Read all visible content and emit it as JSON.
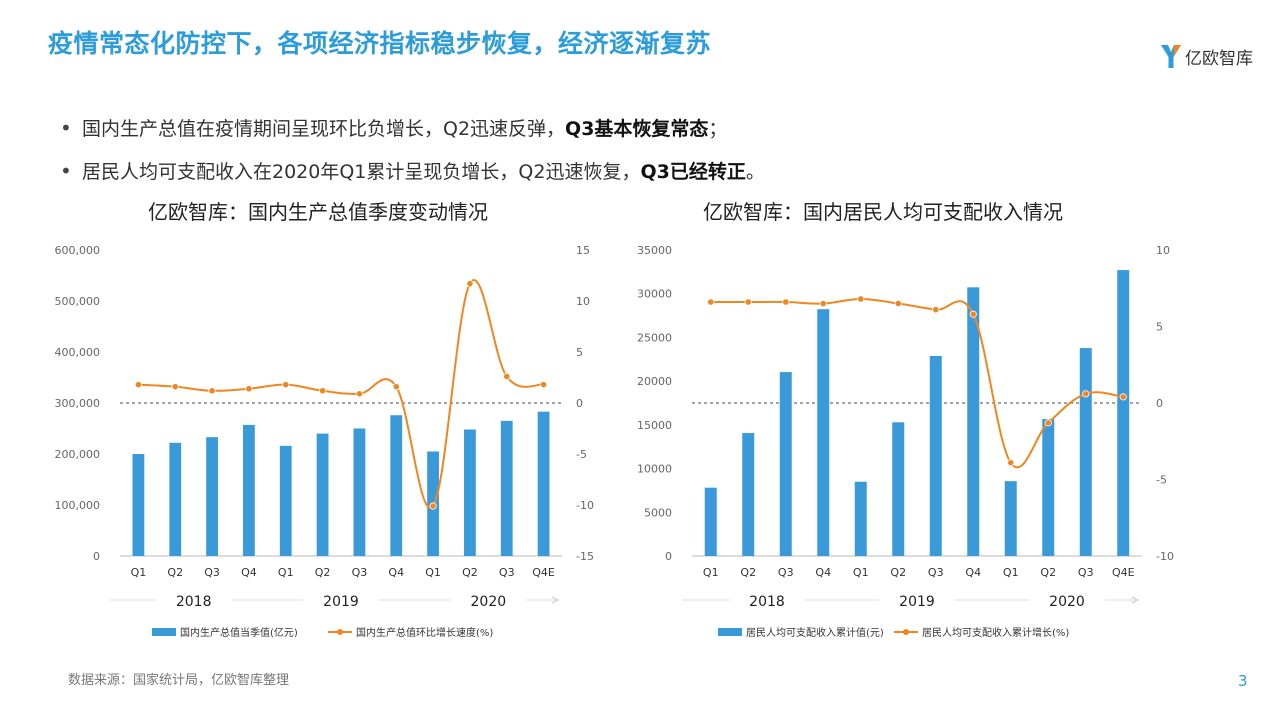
{
  "title": "疫情常态化防控下，各项经济指标稳步恢复，经济逐渐复苏",
  "logo": {
    "icon": "yiou-logo-icon",
    "text": "亿欧智库"
  },
  "bullets": [
    {
      "text": "国内生产总值在疫情期间呈现环比负增长，Q2迅速反弹，",
      "bold": "Q3基本恢复常态",
      "tail": "；"
    },
    {
      "text": "居民人均可支配收入在2020年Q1累计呈现负增长，Q2迅速恢复，",
      "bold": "Q3已经转正",
      "tail": "。"
    }
  ],
  "source": "数据来源：国家统计局，亿欧智库整理",
  "page_number": "3",
  "colors": {
    "bar": "#3a9ad9",
    "line": "#f0861f",
    "title": "#2d9cdb",
    "axis": "#666666"
  },
  "chart_data": [
    {
      "type": "bar",
      "title": "亿欧智库：国内生产总值季度变动情况",
      "categories": [
        "Q1",
        "Q2",
        "Q3",
        "Q4",
        "Q1",
        "Q2",
        "Q3",
        "Q4",
        "Q1",
        "Q2",
        "Q3",
        "Q4E"
      ],
      "year_labels": [
        "2018",
        "2019",
        "2020"
      ],
      "ylim": [
        0,
        600000
      ],
      "yticks": [
        0,
        100000,
        200000,
        300000,
        400000,
        500000,
        600000
      ],
      "ytick_labels": [
        "0",
        "100,000",
        "200,000",
        "300,000",
        "400,000",
        "500,000",
        "600,000"
      ],
      "y2lim": [
        -15,
        15
      ],
      "y2ticks": [
        -15,
        -10,
        -5,
        0,
        5,
        10,
        15
      ],
      "y2tick_labels": [
        "-15",
        "-10",
        "-5",
        "0",
        "5",
        "10",
        "15"
      ],
      "series": [
        {
          "name": "国内生产总值当季值(亿元)",
          "type": "bar",
          "axis": "left",
          "values": [
            200000,
            222000,
            233000,
            257000,
            216000,
            240000,
            250000,
            276000,
            205000,
            248000,
            265000,
            283000
          ]
        },
        {
          "name": "国内生产总值环比增长速度(%)",
          "type": "line",
          "axis": "right",
          "values": [
            1.8,
            1.6,
            1.2,
            1.4,
            1.8,
            1.2,
            0.9,
            1.6,
            -10.1,
            11.7,
            2.6,
            1.8
          ]
        }
      ]
    },
    {
      "type": "bar",
      "title": "亿欧智库：国内居民人均可支配收入情况",
      "categories": [
        "Q1",
        "Q2",
        "Q3",
        "Q4",
        "Q1",
        "Q2",
        "Q3",
        "Q4",
        "Q1",
        "Q2",
        "Q3",
        "Q4E"
      ],
      "year_labels": [
        "2018",
        "2019",
        "2020"
      ],
      "ylim": [
        0,
        35000
      ],
      "yticks": [
        0,
        5000,
        10000,
        15000,
        20000,
        25000,
        30000,
        35000
      ],
      "ytick_labels": [
        "0",
        "5000",
        "10000",
        "15000",
        "20000",
        "25000",
        "30000",
        "35000"
      ],
      "y2lim": [
        -10,
        10
      ],
      "y2ticks": [
        -10,
        -5,
        0,
        5,
        10
      ],
      "y2tick_labels": [
        "-10",
        "-5",
        "0",
        "5",
        "10"
      ],
      "series": [
        {
          "name": "居民人均可支配收入累计值(元)",
          "type": "bar",
          "axis": "left",
          "values": [
            7815,
            14063,
            21035,
            28228,
            8493,
            15294,
            22882,
            30733,
            8561,
            15666,
            23781,
            32700
          ]
        },
        {
          "name": "居民人均可支配收入累计增长(%)",
          "type": "line",
          "axis": "right",
          "values": [
            6.6,
            6.6,
            6.6,
            6.5,
            6.8,
            6.5,
            6.1,
            5.8,
            -3.9,
            -1.3,
            0.6,
            0.4
          ]
        }
      ]
    }
  ]
}
